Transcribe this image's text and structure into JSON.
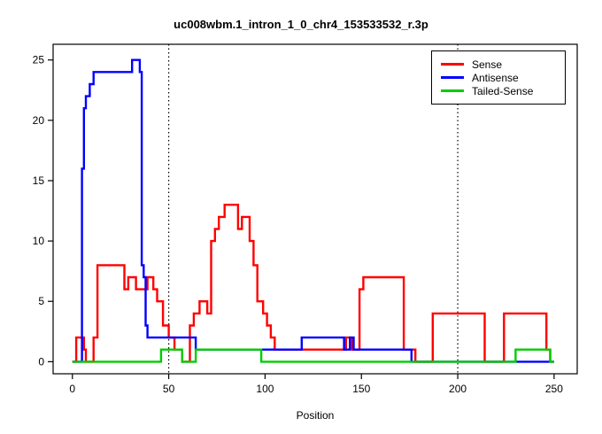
{
  "chart_data": {
    "type": "line",
    "title": "uc008wbm.1_intron_1_0_chr4_153533532_r.3p",
    "xlabel": "Position",
    "ylabel": "",
    "xlim": [
      0,
      250
    ],
    "ylim": [
      0,
      25
    ],
    "x_ticks": [
      0,
      50,
      100,
      150,
      200,
      250
    ],
    "y_ticks": [
      0,
      5,
      10,
      15,
      20,
      25
    ],
    "vlines": [
      50,
      200
    ],
    "grid": false,
    "legend_position": "top-right",
    "series": [
      {
        "name": "Sense",
        "color": "#FF0000",
        "points": [
          [
            0,
            0
          ],
          [
            2,
            0
          ],
          [
            2,
            2
          ],
          [
            6,
            2
          ],
          [
            6,
            1
          ],
          [
            7,
            1
          ],
          [
            7,
            0
          ],
          [
            11,
            0
          ],
          [
            11,
            2
          ],
          [
            13,
            2
          ],
          [
            13,
            8
          ],
          [
            27,
            8
          ],
          [
            27,
            6
          ],
          [
            29,
            6
          ],
          [
            29,
            7
          ],
          [
            33,
            7
          ],
          [
            33,
            6
          ],
          [
            39,
            6
          ],
          [
            39,
            7
          ],
          [
            42,
            7
          ],
          [
            42,
            6
          ],
          [
            44,
            6
          ],
          [
            44,
            5
          ],
          [
            47,
            5
          ],
          [
            47,
            3
          ],
          [
            50,
            3
          ],
          [
            50,
            2
          ],
          [
            53,
            2
          ],
          [
            53,
            1
          ],
          [
            57,
            1
          ],
          [
            57,
            0
          ],
          [
            61,
            0
          ],
          [
            61,
            3
          ],
          [
            63,
            3
          ],
          [
            63,
            4
          ],
          [
            66,
            4
          ],
          [
            66,
            5
          ],
          [
            70,
            5
          ],
          [
            70,
            4
          ],
          [
            72,
            4
          ],
          [
            72,
            10
          ],
          [
            74,
            10
          ],
          [
            74,
            11
          ],
          [
            76,
            11
          ],
          [
            76,
            12
          ],
          [
            79,
            12
          ],
          [
            79,
            13
          ],
          [
            86,
            13
          ],
          [
            86,
            11
          ],
          [
            88,
            11
          ],
          [
            88,
            12
          ],
          [
            92,
            12
          ],
          [
            92,
            10
          ],
          [
            94,
            10
          ],
          [
            94,
            8
          ],
          [
            96,
            8
          ],
          [
            96,
            5
          ],
          [
            99,
            5
          ],
          [
            99,
            4
          ],
          [
            101,
            4
          ],
          [
            101,
            3
          ],
          [
            103,
            3
          ],
          [
            103,
            2
          ],
          [
            105,
            2
          ],
          [
            105,
            1
          ],
          [
            142,
            1
          ],
          [
            142,
            2
          ],
          [
            145,
            2
          ],
          [
            145,
            1
          ],
          [
            149,
            1
          ],
          [
            149,
            6
          ],
          [
            151,
            6
          ],
          [
            151,
            7
          ],
          [
            172,
            7
          ],
          [
            172,
            1
          ],
          [
            178,
            1
          ],
          [
            178,
            0
          ],
          [
            187,
            0
          ],
          [
            187,
            4
          ],
          [
            214,
            4
          ],
          [
            214,
            0
          ],
          [
            224,
            0
          ],
          [
            224,
            4
          ],
          [
            246,
            4
          ],
          [
            246,
            1
          ],
          [
            248,
            1
          ],
          [
            248,
            0
          ],
          [
            250,
            0
          ]
        ]
      },
      {
        "name": "Antisense",
        "color": "#0000FF",
        "points": [
          [
            0,
            0
          ],
          [
            5,
            0
          ],
          [
            5,
            16
          ],
          [
            6,
            16
          ],
          [
            6,
            21
          ],
          [
            7,
            21
          ],
          [
            7,
            22
          ],
          [
            9,
            22
          ],
          [
            9,
            23
          ],
          [
            11,
            23
          ],
          [
            11,
            24
          ],
          [
            31,
            24
          ],
          [
            31,
            25
          ],
          [
            35,
            25
          ],
          [
            35,
            24
          ],
          [
            36,
            24
          ],
          [
            36,
            8
          ],
          [
            37,
            8
          ],
          [
            37,
            7
          ],
          [
            38,
            7
          ],
          [
            38,
            3
          ],
          [
            39,
            3
          ],
          [
            39,
            2
          ],
          [
            64,
            2
          ],
          [
            64,
            1
          ],
          [
            119,
            1
          ],
          [
            119,
            2
          ],
          [
            141,
            2
          ],
          [
            141,
            1
          ],
          [
            144,
            1
          ],
          [
            144,
            2
          ],
          [
            146,
            2
          ],
          [
            146,
            1
          ],
          [
            176,
            1
          ],
          [
            176,
            0
          ],
          [
            245,
            0
          ],
          [
            250,
            0
          ]
        ]
      },
      {
        "name": "Tailed-Sense",
        "color": "#00CD00",
        "points": [
          [
            0,
            0
          ],
          [
            46,
            0
          ],
          [
            46,
            1
          ],
          [
            57,
            1
          ],
          [
            57,
            0
          ],
          [
            64,
            0
          ],
          [
            64,
            1
          ],
          [
            98,
            1
          ],
          [
            98,
            0
          ],
          [
            230,
            0
          ],
          [
            230,
            1
          ],
          [
            248,
            1
          ],
          [
            248,
            0
          ],
          [
            250,
            0
          ]
        ]
      }
    ]
  }
}
